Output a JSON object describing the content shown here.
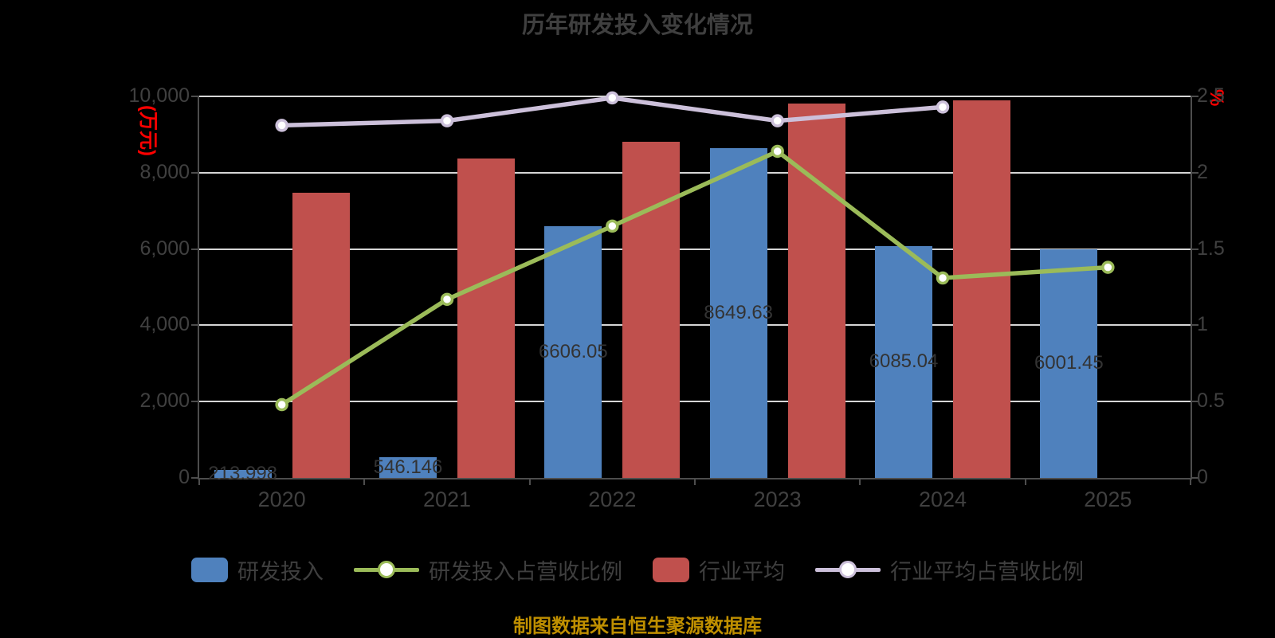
{
  "title": "历年研发投入变化情况",
  "source_note": "制图数据来自恒生聚源数据库",
  "left_axis": {
    "unit": "(万元)",
    "unit_color": "#ff0000",
    "ticks": [
      "10,000",
      "8,000",
      "6,000",
      "4,000",
      "2,000",
      "0"
    ]
  },
  "right_axis": {
    "unit": "%",
    "unit_color": "#ff0000",
    "ticks": [
      "2.5",
      "2",
      "1.5",
      "1",
      "0.5",
      "0"
    ]
  },
  "legend": [
    {
      "label": "研发投入",
      "type": "bar",
      "color": "#4f81bd"
    },
    {
      "label": "研发投入占营收比例",
      "type": "line",
      "color": "#9bbb59"
    },
    {
      "label": "行业平均",
      "type": "bar",
      "color": "#c0504d"
    },
    {
      "label": "行业平均占营收比例",
      "type": "line",
      "color": "#ccc0da"
    }
  ],
  "colors": {
    "background": "#000000",
    "gridline": "#d6d6d6",
    "axis": "#4d4d4d",
    "title_text": "#3f3f3f",
    "tick_text": "#404040",
    "bar_label_text": "#333333",
    "caption_text": "#bf8f00",
    "marker_fill": "#ffffff"
  },
  "chart_data": {
    "type": "bar",
    "subtype": "grouped bars with two overlay lines (dual axis)",
    "categories": [
      "2020",
      "2021",
      "2022",
      "2023",
      "2024",
      "2025"
    ],
    "series": [
      {
        "name": "研发投入",
        "type": "bar",
        "axis": "left",
        "color": "#4f81bd",
        "values": [
          213.998,
          546.146,
          6606.05,
          8649.63,
          6085.04,
          6001.45
        ],
        "labels": [
          "213.998",
          "546.146",
          "6606.05",
          "8649.63",
          "6085.04",
          "6001.45"
        ]
      },
      {
        "name": "行业平均",
        "type": "bar",
        "axis": "left",
        "color": "#c0504d",
        "values": [
          7470,
          8380,
          8810,
          9810,
          9890,
          null
        ]
      },
      {
        "name": "研发投入占营收比例",
        "type": "line",
        "axis": "right",
        "color": "#9bbb59",
        "values": [
          0.48,
          1.17,
          1.65,
          2.14,
          1.31,
          1.38
        ]
      },
      {
        "name": "行业平均占营收比例",
        "type": "line",
        "axis": "right",
        "color": "#ccc0da",
        "values": [
          2.31,
          2.34,
          2.49,
          2.34,
          2.43,
          null
        ]
      }
    ],
    "left_ylim": [
      0,
      10000
    ],
    "right_ylim": [
      0,
      2.5
    ],
    "grid": true,
    "legend_position": "bottom"
  }
}
